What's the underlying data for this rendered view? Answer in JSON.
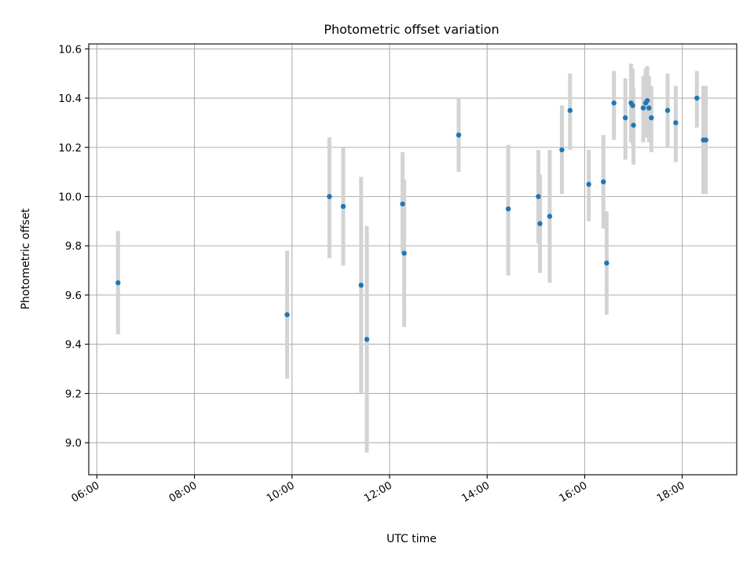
{
  "chart_data": {
    "type": "scatter",
    "title": "Photometric offset variation",
    "xlabel": "UTC time",
    "ylabel": "Photometric offset",
    "x_axis": {
      "kind": "time",
      "min": "05:50",
      "max": "19:07",
      "ticks": [
        "06:00",
        "08:00",
        "10:00",
        "12:00",
        "14:00",
        "16:00",
        "18:00"
      ]
    },
    "y_axis": {
      "min": 8.87,
      "max": 10.62,
      "ticks": [
        "9.0",
        "9.2",
        "9.4",
        "9.6",
        "9.8",
        "10.0",
        "10.2",
        "10.4",
        "10.6"
      ]
    },
    "grid": true,
    "marker_color": "#1f77b4",
    "errorbar_color": "#d3d3d3",
    "points": [
      {
        "x": "06:26",
        "y": 9.65,
        "ymin": 9.44,
        "ymax": 9.86
      },
      {
        "x": "09:54",
        "y": 9.52,
        "ymin": 9.26,
        "ymax": 9.78
      },
      {
        "x": "10:46",
        "y": 10.0,
        "ymin": 9.75,
        "ymax": 10.24
      },
      {
        "x": "11:03",
        "y": 9.96,
        "ymin": 9.72,
        "ymax": 10.2
      },
      {
        "x": "11:25",
        "y": 9.64,
        "ymin": 9.2,
        "ymax": 10.08
      },
      {
        "x": "11:32",
        "y": 9.42,
        "ymin": 8.96,
        "ymax": 9.88
      },
      {
        "x": "12:16",
        "y": 9.97,
        "ymin": 9.77,
        "ymax": 10.18
      },
      {
        "x": "12:18",
        "y": 9.77,
        "ymin": 9.47,
        "ymax": 10.07
      },
      {
        "x": "13:25",
        "y": 10.25,
        "ymin": 10.1,
        "ymax": 10.4
      },
      {
        "x": "14:26",
        "y": 9.95,
        "ymin": 9.68,
        "ymax": 10.21
      },
      {
        "x": "15:03",
        "y": 10.0,
        "ymin": 9.81,
        "ymax": 10.19
      },
      {
        "x": "15:05",
        "y": 9.89,
        "ymin": 9.69,
        "ymax": 10.09
      },
      {
        "x": "15:17",
        "y": 9.92,
        "ymin": 9.65,
        "ymax": 10.19
      },
      {
        "x": "15:32",
        "y": 10.19,
        "ymin": 10.01,
        "ymax": 10.37
      },
      {
        "x": "15:42",
        "y": 10.35,
        "ymin": 10.19,
        "ymax": 10.5
      },
      {
        "x": "16:05",
        "y": 10.05,
        "ymin": 9.9,
        "ymax": 10.19
      },
      {
        "x": "16:23",
        "y": 10.06,
        "ymin": 9.87,
        "ymax": 10.25
      },
      {
        "x": "16:27",
        "y": 9.73,
        "ymin": 9.52,
        "ymax": 9.94
      },
      {
        "x": "16:36",
        "y": 10.38,
        "ymin": 10.23,
        "ymax": 10.51
      },
      {
        "x": "16:50",
        "y": 10.32,
        "ymin": 10.15,
        "ymax": 10.48
      },
      {
        "x": "16:57",
        "y": 10.38,
        "ymin": 10.22,
        "ymax": 10.54
      },
      {
        "x": "16:59",
        "y": 10.37,
        "ymin": 10.21,
        "ymax": 10.52
      },
      {
        "x": "17:00",
        "y": 10.29,
        "ymin": 10.13,
        "ymax": 10.44
      },
      {
        "x": "17:12",
        "y": 10.36,
        "ymin": 10.22,
        "ymax": 10.49
      },
      {
        "x": "17:15",
        "y": 10.38,
        "ymin": 10.24,
        "ymax": 10.52
      },
      {
        "x": "17:17",
        "y": 10.39,
        "ymin": 10.24,
        "ymax": 10.53
      },
      {
        "x": "17:19",
        "y": 10.36,
        "ymin": 10.22,
        "ymax": 10.49
      },
      {
        "x": "17:22",
        "y": 10.32,
        "ymin": 10.18,
        "ymax": 10.45
      },
      {
        "x": "17:42",
        "y": 10.35,
        "ymin": 10.2,
        "ymax": 10.5
      },
      {
        "x": "17:52",
        "y": 10.3,
        "ymin": 10.14,
        "ymax": 10.45
      },
      {
        "x": "18:18",
        "y": 10.4,
        "ymin": 10.28,
        "ymax": 10.51
      },
      {
        "x": "18:26",
        "y": 10.23,
        "ymin": 10.01,
        "ymax": 10.45
      },
      {
        "x": "18:29",
        "y": 10.23,
        "ymin": 10.01,
        "ymax": 10.45
      }
    ]
  }
}
